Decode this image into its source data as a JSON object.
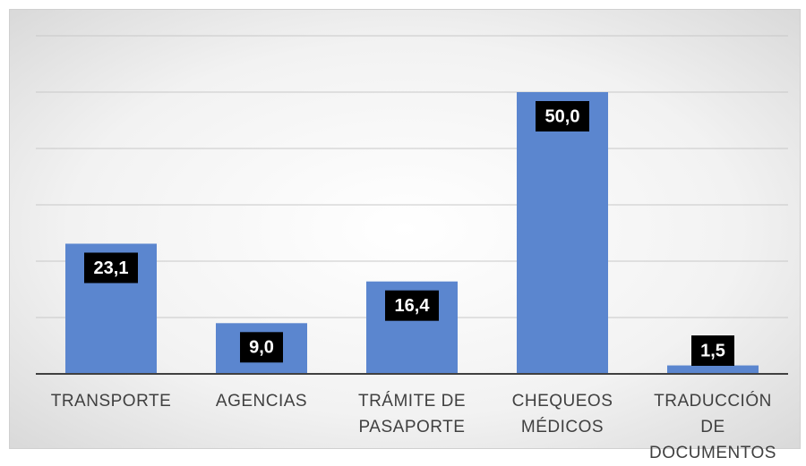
{
  "chart_data": {
    "type": "bar",
    "categories": [
      "TRANSPORTE",
      "AGENCIAS",
      "TRÁMITE DE PASAPORTE",
      "CHEQUEOS MÉDICOS",
      "TRADUCCIÓN DE DOCUMENTOS"
    ],
    "values": [
      23.1,
      9.0,
      16.4,
      50.0,
      1.5
    ],
    "value_labels": [
      "23,1",
      "9,0",
      "16,4",
      "50,0",
      "1,5"
    ],
    "color": "#5b86cf",
    "ylim": [
      0,
      60
    ],
    "yticks": [
      0,
      10,
      20,
      30,
      40,
      50,
      60
    ],
    "grid": true
  }
}
